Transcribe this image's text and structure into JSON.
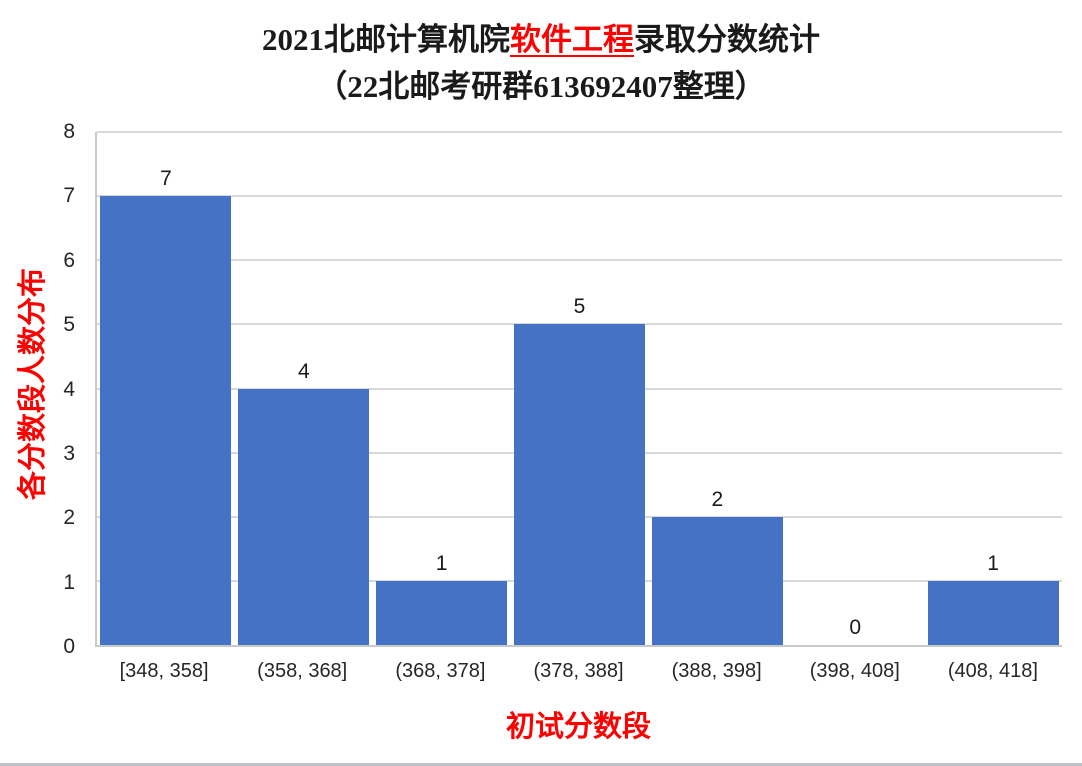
{
  "title": {
    "part1": "2021北邮计算机院",
    "part2": "软件工程",
    "part3": "录取分数统计",
    "line2": "（22北邮考研群613692407整理）"
  },
  "chart_data": {
    "type": "bar",
    "title": "2021北邮计算机院软件工程录取分数统计（22北邮考研群613692407整理）",
    "categories": [
      "[348, 358]",
      "(358, 368]",
      "(368, 378]",
      "(378, 388]",
      "(388, 398]",
      "(398, 408]",
      "(408, 418]"
    ],
    "values": [
      7,
      4,
      1,
      5,
      2,
      0,
      1
    ],
    "xlabel": "初试分数段",
    "ylabel": "各分数段人数分布",
    "ylim": [
      0,
      8
    ],
    "ytick_step": 1,
    "grid": true,
    "legend": "none",
    "bar_color": "#4472C4",
    "accent_red": "#FF0000"
  }
}
